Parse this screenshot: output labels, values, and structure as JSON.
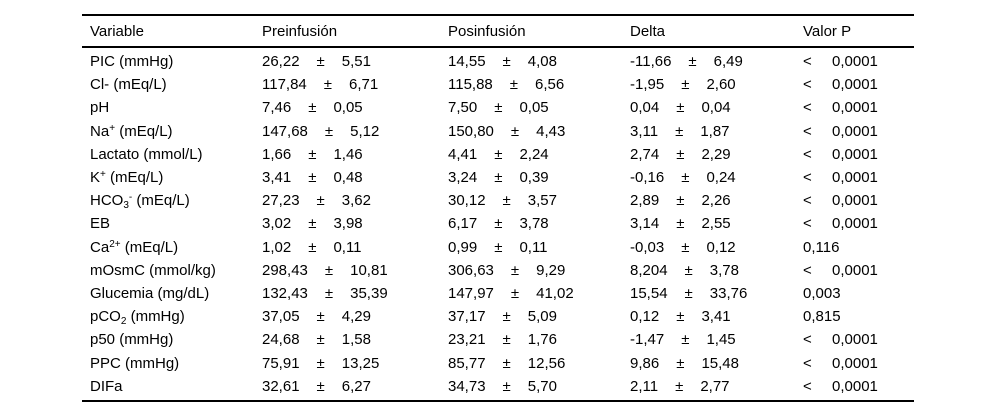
{
  "table": {
    "plus_minus": "±",
    "columns": [
      "Variable",
      "Preinfusión",
      "Posinfusión",
      "Delta",
      "Valor P"
    ],
    "rows": [
      {
        "variable": [
          {
            "t": "PIC (mmHg)"
          }
        ],
        "pre": {
          "mean": "26,22",
          "sd": "5,51"
        },
        "pos": {
          "mean": "14,55",
          "sd": "4,08"
        },
        "delta": {
          "mean": "-11,66",
          "sd": "6,49"
        },
        "p": {
          "prefix": "<",
          "value": "0,0001"
        }
      },
      {
        "variable": [
          {
            "t": "Cl- (mEq/L)"
          }
        ],
        "pre": {
          "mean": "117,84",
          "sd": "6,71"
        },
        "pos": {
          "mean": "115,88",
          "sd": "6,56"
        },
        "delta": {
          "mean": "-1,95",
          "sd": "2,60"
        },
        "p": {
          "prefix": "<",
          "value": "0,0001"
        }
      },
      {
        "variable": [
          {
            "t": "pH"
          }
        ],
        "pre": {
          "mean": "7,46",
          "sd": "0,05"
        },
        "pos": {
          "mean": "7,50",
          "sd": "0,05"
        },
        "delta": {
          "mean": "0,04",
          "sd": "0,04"
        },
        "p": {
          "prefix": "<",
          "value": "0,0001"
        }
      },
      {
        "variable": [
          {
            "t": "Na"
          },
          {
            "t": "+",
            "m": "sup"
          },
          {
            "t": " (mEq/L)"
          }
        ],
        "pre": {
          "mean": "147,68",
          "sd": "5,12"
        },
        "pos": {
          "mean": "150,80",
          "sd": "4,43"
        },
        "delta": {
          "mean": "3,11",
          "sd": "1,87"
        },
        "p": {
          "prefix": "<",
          "value": "0,0001"
        }
      },
      {
        "variable": [
          {
            "t": "Lactato (mmol/L)"
          }
        ],
        "pre": {
          "mean": "1,66",
          "sd": "1,46"
        },
        "pos": {
          "mean": "4,41",
          "sd": "2,24"
        },
        "delta": {
          "mean": "2,74",
          "sd": "2,29"
        },
        "p": {
          "prefix": "<",
          "value": "0,0001"
        }
      },
      {
        "variable": [
          {
            "t": "K"
          },
          {
            "t": "+",
            "m": "sup"
          },
          {
            "t": " (mEq/L)"
          }
        ],
        "pre": {
          "mean": "3,41",
          "sd": "0,48"
        },
        "pos": {
          "mean": "3,24",
          "sd": "0,39"
        },
        "delta": {
          "mean": "-0,16",
          "sd": "0,24"
        },
        "p": {
          "prefix": "<",
          "value": "0,0001"
        }
      },
      {
        "variable": [
          {
            "t": "HCO"
          },
          {
            "t": "3",
            "m": "sub"
          },
          {
            "t": "-",
            "m": "sup"
          },
          {
            "t": " (mEq/L)"
          }
        ],
        "pre": {
          "mean": "27,23",
          "sd": "3,62"
        },
        "pos": {
          "mean": "30,12",
          "sd": "3,57"
        },
        "delta": {
          "mean": "2,89",
          "sd": "2,26"
        },
        "p": {
          "prefix": "<",
          "value": "0,0001"
        }
      },
      {
        "variable": [
          {
            "t": "EB"
          }
        ],
        "pre": {
          "mean": "3,02",
          "sd": "3,98"
        },
        "pos": {
          "mean": "6,17",
          "sd": "3,78"
        },
        "delta": {
          "mean": "3,14",
          "sd": "2,55"
        },
        "p": {
          "prefix": "<",
          "value": "0,0001"
        }
      },
      {
        "variable": [
          {
            "t": "Ca"
          },
          {
            "t": "2+",
            "m": "sup"
          },
          {
            "t": " (mEq/L)"
          }
        ],
        "pre": {
          "mean": "1,02",
          "sd": "0,11"
        },
        "pos": {
          "mean": "0,99",
          "sd": "0,11"
        },
        "delta": {
          "mean": "-0,03",
          "sd": "0,12"
        },
        "p": {
          "prefix": "",
          "value": "0,116"
        }
      },
      {
        "variable": [
          {
            "t": "mOsmC (mmol/kg)"
          }
        ],
        "pre": {
          "mean": "298,43",
          "sd": "10,81"
        },
        "pos": {
          "mean": "306,63",
          "sd": "9,29"
        },
        "delta": {
          "mean": "8,204",
          "sd": "3,78"
        },
        "p": {
          "prefix": "<",
          "value": "0,0001"
        }
      },
      {
        "variable": [
          {
            "t": "Glucemia (mg/dL)"
          }
        ],
        "pre": {
          "mean": "132,43",
          "sd": "35,39"
        },
        "pos": {
          "mean": "147,97",
          "sd": "41,02"
        },
        "delta": {
          "mean": "15,54",
          "sd": "33,76"
        },
        "p": {
          "prefix": "",
          "value": "0,003"
        }
      },
      {
        "variable": [
          {
            "t": "pCO"
          },
          {
            "t": "2",
            "m": "sub"
          },
          {
            "t": " (mmHg)"
          }
        ],
        "pre": {
          "mean": "37,05",
          "sd": "4,29"
        },
        "pos": {
          "mean": "37,17",
          "sd": "5,09"
        },
        "delta": {
          "mean": "0,12",
          "sd": "3,41"
        },
        "p": {
          "prefix": "",
          "value": "0,815"
        }
      },
      {
        "variable": [
          {
            "t": "p50 (mmHg)"
          }
        ],
        "pre": {
          "mean": "24,68",
          "sd": "1,58"
        },
        "pos": {
          "mean": "23,21",
          "sd": "1,76"
        },
        "delta": {
          "mean": "-1,47",
          "sd": "1,45"
        },
        "p": {
          "prefix": "<",
          "value": "0,0001"
        }
      },
      {
        "variable": [
          {
            "t": "PPC (mmHg)"
          }
        ],
        "pre": {
          "mean": "75,91",
          "sd": "13,25"
        },
        "pos": {
          "mean": "85,77",
          "sd": "12,56"
        },
        "delta": {
          "mean": "9,86",
          "sd": "15,48"
        },
        "p": {
          "prefix": "<",
          "value": "0,0001"
        }
      },
      {
        "variable": [
          {
            "t": "DIFa"
          }
        ],
        "pre": {
          "mean": "32,61",
          "sd": "6,27"
        },
        "pos": {
          "mean": "34,73",
          "sd": "5,70"
        },
        "delta": {
          "mean": "2,11",
          "sd": "2,77"
        },
        "p": {
          "prefix": "<",
          "value": "0,0001"
        }
      }
    ]
  }
}
